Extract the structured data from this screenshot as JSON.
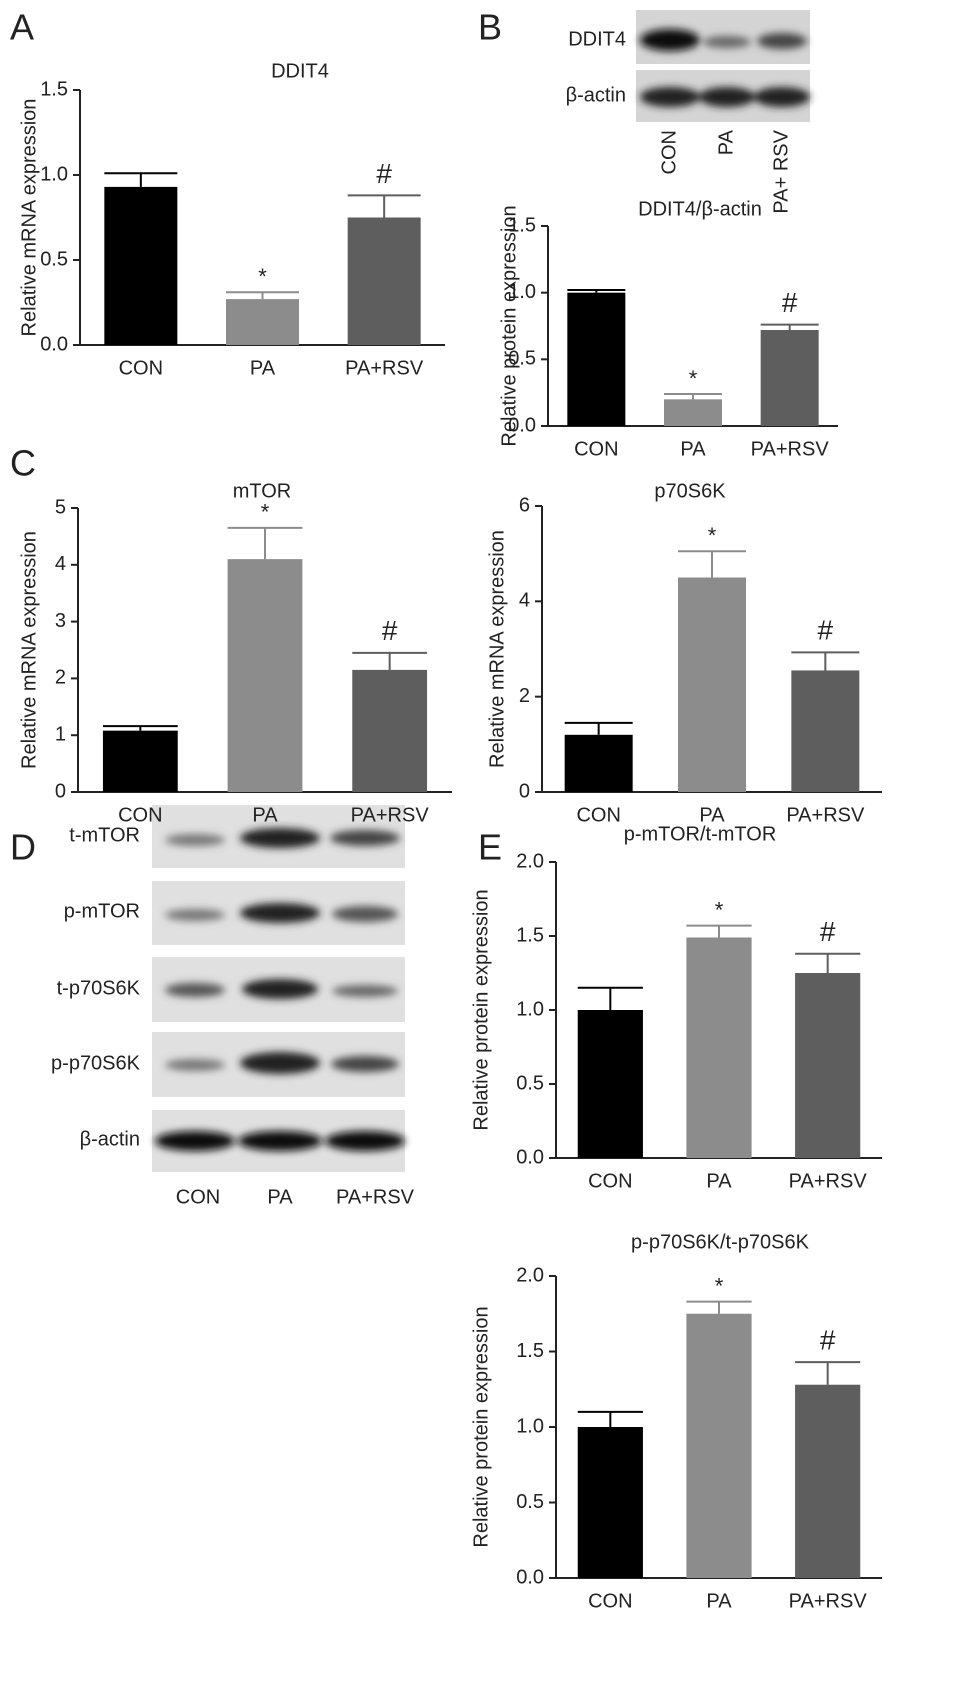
{
  "panels": [
    "A",
    "B",
    "C",
    "D",
    "E"
  ],
  "chart_data": [
    {
      "type": "bar",
      "title": "DDIT4",
      "ylabel": "Relative mRNA expression",
      "categories": [
        "CON",
        "PA",
        "PA+RSV"
      ],
      "values": [
        0.93,
        0.27,
        0.75
      ],
      "errors": [
        0.08,
        0.04,
        0.13
      ],
      "colors": [
        "#000000",
        "#8c8c8c",
        "#5e5e5e"
      ],
      "significance": [
        null,
        "*",
        "#"
      ],
      "ylim": [
        0,
        1.5
      ],
      "yticks": [
        {
          "value": 0,
          "label": "0.0"
        },
        0.5,
        {
          "value": 1,
          "label": "1.0"
        },
        1.5
      ]
    },
    {
      "type": "bar",
      "title": "DDIT4/β-actin",
      "ylabel": "Relative protein expression",
      "categories": [
        "CON",
        "PA",
        "PA+RSV"
      ],
      "values": [
        1.0,
        0.2,
        0.72
      ],
      "errors": [
        0.02,
        0.04,
        0.04
      ],
      "colors": [
        "#000000",
        "#8c8c8c",
        "#5e5e5e"
      ],
      "significance": [
        null,
        "*",
        "#"
      ],
      "ylim": [
        0,
        1.5
      ],
      "yticks": [
        {
          "value": 0,
          "label": "0.0"
        },
        0.5,
        {
          "value": 1,
          "label": "1.0"
        },
        1.5
      ]
    },
    {
      "type": "bar",
      "title": "mTOR",
      "ylabel": "Relative mRNA expression",
      "categories": [
        "CON",
        "PA",
        "PA+RSV"
      ],
      "values": [
        1.08,
        4.1,
        2.15
      ],
      "errors": [
        0.08,
        0.55,
        0.3
      ],
      "colors": [
        "#000000",
        "#8c8c8c",
        "#5e5e5e"
      ],
      "significance": [
        null,
        "*",
        "#"
      ],
      "ylim": [
        0,
        5
      ],
      "yticks": [
        0,
        1,
        2,
        3,
        4,
        5
      ]
    },
    {
      "type": "bar",
      "title": "p70S6K",
      "ylabel": "Relative mRNA expression",
      "categories": [
        "CON",
        "PA",
        "PA+RSV"
      ],
      "values": [
        1.2,
        4.5,
        2.55
      ],
      "errors": [
        0.25,
        0.55,
        0.38
      ],
      "colors": [
        "#000000",
        "#8c8c8c",
        "#5e5e5e"
      ],
      "significance": [
        null,
        "*",
        "#"
      ],
      "ylim": [
        0,
        6
      ],
      "yticks": [
        0,
        2,
        4,
        6
      ]
    },
    {
      "type": "bar",
      "title": "p-mTOR/t-mTOR",
      "ylabel": "Relative protein expression",
      "categories": [
        "CON",
        "PA",
        "PA+RSV"
      ],
      "values": [
        1.0,
        1.49,
        1.25
      ],
      "errors": [
        0.15,
        0.08,
        0.13
      ],
      "colors": [
        "#000000",
        "#8c8c8c",
        "#5e5e5e"
      ],
      "significance": [
        null,
        "*",
        "#"
      ],
      "ylim": [
        0,
        2
      ],
      "yticks": [
        {
          "value": 0,
          "label": "0.0"
        },
        0.5,
        {
          "value": 1,
          "label": "1.0"
        },
        1.5,
        {
          "value": 2,
          "label": "2.0"
        }
      ]
    },
    {
      "type": "bar",
      "title": "p-p70S6K/t-p70S6K",
      "ylabel": "Relative protein expression",
      "categories": [
        "CON",
        "PA",
        "PA+RSV"
      ],
      "values": [
        1.0,
        1.75,
        1.28
      ],
      "errors": [
        0.1,
        0.08,
        0.15
      ],
      "colors": [
        "#000000",
        "#8c8c8c",
        "#5e5e5e"
      ],
      "significance": [
        null,
        "*",
        "#"
      ],
      "ylim": [
        0,
        2
      ],
      "yticks": [
        {
          "value": 0,
          "label": "0.0"
        },
        0.5,
        {
          "value": 1,
          "label": "1.0"
        },
        1.5,
        {
          "value": 2,
          "label": "2.0"
        }
      ]
    }
  ],
  "blots": [
    {
      "rows": [
        "DDIT4",
        "β-actin"
      ],
      "lanes": [
        "CON",
        "PA",
        "PA+ RSV"
      ]
    },
    {
      "rows": [
        "t-mTOR",
        "p-mTOR",
        "t-p70S6K",
        "p-p70S6K",
        "β-actin"
      ],
      "lanes": [
        "CON",
        "PA",
        "PA+RSV"
      ]
    }
  ]
}
